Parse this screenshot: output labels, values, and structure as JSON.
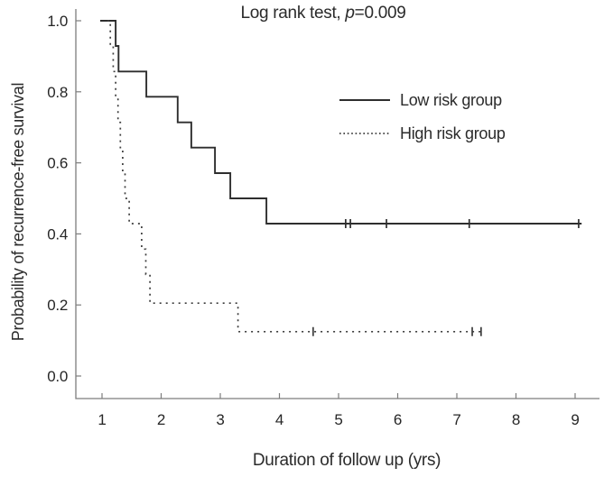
{
  "title": {
    "prefix": "Log rank test, ",
    "italic": "p",
    "suffix": "=0.009"
  },
  "axes": {
    "x": {
      "label": "Duration of follow up (yrs)",
      "tick_labels": [
        "1",
        "2",
        "3",
        "4",
        "5",
        "6",
        "7",
        "8",
        "9"
      ],
      "tick_values": [
        1,
        2,
        3,
        4,
        5,
        6,
        7,
        8,
        9
      ]
    },
    "y": {
      "label": "Probability of recurrence-free survival",
      "tick_labels": [
        "0.0",
        "0.2",
        "0.4",
        "0.6",
        "0.8",
        "1.0"
      ],
      "tick_values": [
        0.0,
        0.2,
        0.4,
        0.6,
        0.8,
        1.0
      ]
    }
  },
  "legend": {
    "items": [
      {
        "label": "Low risk group",
        "style": "solid"
      },
      {
        "label": "High risk group",
        "style": "dotted"
      }
    ]
  },
  "colors": {
    "solid_curve": "#2e2e2e",
    "dotted_curve": "#3d3d3d",
    "axis": "#7d7d7d",
    "text": "#262626"
  },
  "chart_data": {
    "type": "line",
    "subtype": "kaplan-meier-step",
    "title": "Log rank test, p=0.009",
    "xlabel": "Duration of follow up (yrs)",
    "ylabel": "Probability of recurrence-free survival",
    "xlim": [
      0.55,
      9.45
    ],
    "ylim": [
      0.0,
      1.05
    ],
    "grid": false,
    "legend_position": "upper-right-inside",
    "series": [
      {
        "name": "Low risk group",
        "line": "solid",
        "steps": [
          [
            0.97,
            1.0
          ],
          [
            1.23,
            0.929
          ],
          [
            1.28,
            0.857
          ],
          [
            1.75,
            0.786
          ],
          [
            2.28,
            0.714
          ],
          [
            2.51,
            0.643
          ],
          [
            2.91,
            0.571
          ],
          [
            3.17,
            0.5
          ],
          [
            3.78,
            0.429
          ]
        ],
        "end_x": 9.11,
        "censored": [
          [
            5.12,
            0.429
          ],
          [
            5.2,
            0.429
          ],
          [
            5.81,
            0.429
          ],
          [
            7.21,
            0.429
          ],
          [
            9.06,
            0.429
          ]
        ]
      },
      {
        "name": "High risk group",
        "line": "dotted",
        "steps": [
          [
            1.09,
            1.0
          ],
          [
            1.14,
            0.929
          ],
          [
            1.19,
            0.857
          ],
          [
            1.23,
            0.786
          ],
          [
            1.27,
            0.714
          ],
          [
            1.31,
            0.643
          ],
          [
            1.35,
            0.571
          ],
          [
            1.39,
            0.5
          ],
          [
            1.46,
            0.429
          ],
          [
            1.67,
            0.357
          ],
          [
            1.74,
            0.286
          ],
          [
            1.81,
            0.205
          ],
          [
            3.3,
            0.125
          ]
        ],
        "end_x": 7.44,
        "censored": [
          [
            4.57,
            0.125
          ],
          [
            7.26,
            0.125
          ],
          [
            7.41,
            0.125
          ]
        ]
      }
    ]
  }
}
